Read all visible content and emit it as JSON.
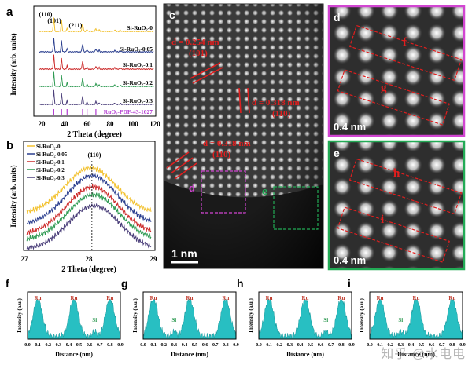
{
  "colors": {
    "s0": "#f2c12e",
    "s005": "#2b3f8f",
    "s01": "#cc2a2a",
    "s02": "#2e9a52",
    "s03": "#4b3f7a",
    "ref": "#b23bd1",
    "cyan": "#28bfc2",
    "red": "#e01e1e",
    "magenta": "#d145d1",
    "green": "#22aa55"
  },
  "panel_a": {
    "label": "a",
    "ylabel": "Intensity (arb. units)",
    "xlabel": "2 Theta (degree)",
    "xticks": [
      "20",
      "40",
      "60",
      "80",
      "100",
      "120"
    ],
    "peaks": [
      "(110)",
      "(101)",
      "(211)"
    ],
    "series_labels": [
      "Si-RuO₂-0",
      "Si-RuO₂-0.05",
      "Si-RuO₂-0.1",
      "Si-RuO₂-0.2",
      "Si-RuO₂-0.3"
    ],
    "ref_label": "RuO₂-PDF-43-1027"
  },
  "panel_b": {
    "label": "b",
    "ylabel": "Intensity (arb. units)",
    "xlabel": "2 Theta (degree)",
    "xticks": [
      "27",
      "28",
      "29"
    ],
    "peak": "(110)",
    "legend": [
      "Si-RuO₂-0",
      "Si-RuO₂-0.05",
      "Si-RuO₂-0.1",
      "Si-RuO₂-0.2",
      "Si-RuO₂-0.3"
    ]
  },
  "panel_c": {
    "label": "c",
    "d1": "d = 0.254 nm",
    "p1": "(101)",
    "d2": "d = 0.318 nm",
    "p2": "(110)",
    "d3": "d = 0.318 nm",
    "p3": "(110)",
    "box_d": "d",
    "box_e": "e",
    "scale": "1 nm"
  },
  "panel_d": {
    "label": "d",
    "f": "f",
    "g": "g",
    "scale": "0.4 nm"
  },
  "panel_e": {
    "label": "e",
    "h": "h",
    "i": "i",
    "scale": "0.4 nm"
  },
  "profiles": {
    "ylabel": "Intensity (a.u.)",
    "xlabel": "Distance (nm)",
    "xticks": [
      "0.0",
      "0.1",
      "0.2",
      "0.3",
      "0.4",
      "0.5",
      "0.6",
      "0.7",
      "0.8",
      "0.9"
    ],
    "ru": "Ru",
    "si": "Si",
    "panels": [
      {
        "label": "f",
        "peaks": [
          0.1,
          0.45,
          0.8
        ],
        "si": 0.65
      },
      {
        "label": "g",
        "peaks": [
          0.1,
          0.45,
          0.8
        ],
        "si": 0.3
      },
      {
        "label": "h",
        "peaks": [
          0.1,
          0.45,
          0.8
        ],
        "si": 0.65
      },
      {
        "label": "i",
        "peaks": [
          0.1,
          0.45,
          0.8
        ],
        "si": 0.3
      }
    ]
  },
  "watermark": "知乎 @水电电"
}
